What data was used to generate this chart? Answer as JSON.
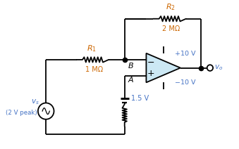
{
  "bg_color": "#ffffff",
  "line_color": "#000000",
  "orange_color": "#cc6600",
  "blue_color": "#4472c4",
  "cyan_fill": "#cce8f4",
  "labels": {
    "R1": "$R_1$",
    "R1_val": "1 MΩ",
    "R2": "$R_2$",
    "R2_val": "2 MΩ",
    "vs": "$v_s$",
    "vs_val": "(2 V peak)",
    "vdc": "1.5 V",
    "vplus": "+10 V",
    "vminus": "−10 V",
    "vo": "$v_o$",
    "node_B": "$B$",
    "node_A": "$A$"
  },
  "figsize": [
    3.39,
    2.12
  ],
  "dpi": 100,
  "xlim": [
    0,
    10
  ],
  "ylim": [
    0,
    6.24
  ]
}
